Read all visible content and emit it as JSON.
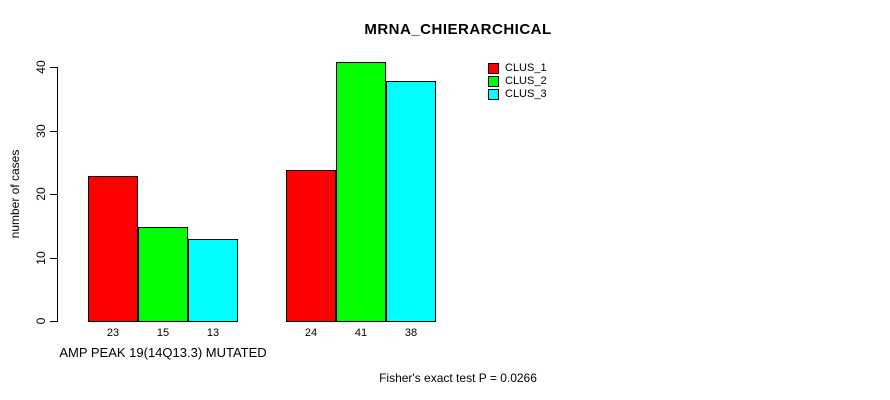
{
  "chart_data": {
    "type": "bar",
    "title": "MRNA_CHIERARCHICAL",
    "ylabel": "number of cases",
    "xlabel": "AMP PEAK 19(14Q13.3) MUTATED",
    "ylim": [
      0,
      40
    ],
    "yticks": [
      0,
      10,
      20,
      30,
      40
    ],
    "grid": false,
    "legend_position": "top-right",
    "groups": [
      "group-1",
      "group-2"
    ],
    "series": [
      {
        "name": "CLUS_1",
        "color": "#ff0000",
        "values": [
          23,
          24
        ]
      },
      {
        "name": "CLUS_2",
        "color": "#00ff00",
        "values": [
          15,
          41
        ]
      },
      {
        "name": "CLUS_3",
        "color": "#00ffff",
        "values": [
          13,
          38
        ]
      }
    ],
    "bar_value_labels": [
      [
        23,
        15,
        13
      ],
      [
        24,
        41,
        38
      ]
    ],
    "annotation": "Fisher's exact test P = 0.0266"
  },
  "colors": {
    "clus_1": "#ff0000",
    "clus_2": "#00ff00",
    "clus_3": "#00ffff",
    "axis": "#000000",
    "background": "#ffffff"
  }
}
